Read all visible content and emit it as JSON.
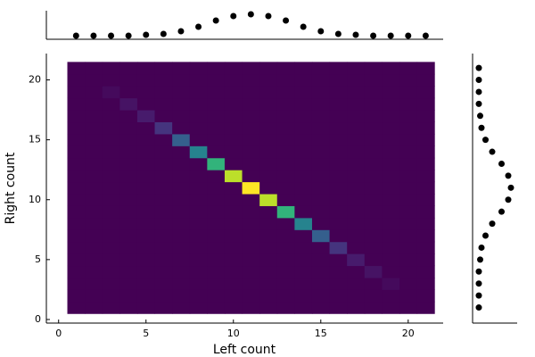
{
  "chart_data": [
    {
      "type": "heatmap",
      "x_label": "Left count",
      "y_label": "Right count",
      "x": [
        1,
        2,
        3,
        4,
        5,
        6,
        7,
        8,
        9,
        10,
        11,
        12,
        13,
        14,
        15,
        16,
        17,
        18,
        19,
        20,
        21
      ],
      "y": [
        1,
        2,
        3,
        4,
        5,
        6,
        7,
        8,
        9,
        10,
        11,
        12,
        13,
        14,
        15,
        16,
        17,
        18,
        19,
        20,
        21
      ],
      "z": [
        [
          0,
          0,
          0,
          0,
          0,
          0,
          0,
          0,
          0,
          0,
          0,
          0,
          0,
          0,
          0,
          0,
          0,
          0,
          0,
          0,
          0
        ],
        [
          0,
          0,
          0,
          0,
          0,
          0,
          0,
          0,
          0,
          0,
          0,
          0,
          0,
          0,
          0,
          0,
          0,
          0,
          0,
          0,
          0
        ],
        [
          0,
          0,
          0,
          0,
          0,
          0,
          0,
          0,
          0,
          0,
          0,
          0,
          0,
          0,
          0,
          0,
          0,
          0,
          1,
          0,
          0
        ],
        [
          0,
          0,
          0,
          0,
          0,
          0,
          0,
          0,
          0,
          0,
          0,
          0,
          0,
          0,
          0,
          0,
          0,
          2,
          0,
          0,
          0
        ],
        [
          0,
          0,
          0,
          0,
          0,
          0,
          0,
          0,
          0,
          0,
          0,
          0,
          0,
          0,
          0,
          0,
          3,
          0,
          0,
          0,
          0
        ],
        [
          0,
          0,
          0,
          0,
          0,
          0,
          0,
          0,
          0,
          0,
          0,
          0,
          0,
          0,
          0,
          6,
          0,
          0,
          0,
          0,
          0
        ],
        [
          0,
          0,
          0,
          0,
          0,
          0,
          0,
          0,
          0,
          0,
          0,
          0,
          0,
          0,
          12,
          0,
          0,
          0,
          0,
          0,
          0
        ],
        [
          0,
          0,
          0,
          0,
          0,
          0,
          0,
          0,
          0,
          0,
          0,
          0,
          0,
          18,
          0,
          0,
          0,
          0,
          0,
          0,
          0
        ],
        [
          0,
          0,
          0,
          0,
          0,
          0,
          0,
          0,
          0,
          0,
          0,
          0,
          26,
          0,
          0,
          0,
          0,
          0,
          0,
          0,
          0
        ],
        [
          0,
          0,
          0,
          0,
          0,
          0,
          0,
          0,
          0,
          0,
          0,
          36,
          0,
          0,
          0,
          0,
          0,
          0,
          0,
          0,
          0
        ],
        [
          0,
          0,
          0,
          0,
          0,
          0,
          0,
          0,
          0,
          0,
          40,
          0,
          0,
          0,
          0,
          0,
          0,
          0,
          0,
          0,
          0
        ],
        [
          0,
          0,
          0,
          0,
          0,
          0,
          0,
          0,
          0,
          36,
          0,
          0,
          0,
          0,
          0,
          0,
          0,
          0,
          0,
          0,
          0
        ],
        [
          0,
          0,
          0,
          0,
          0,
          0,
          0,
          0,
          26,
          0,
          0,
          0,
          0,
          0,
          0,
          0,
          0,
          0,
          0,
          0,
          0
        ],
        [
          0,
          0,
          0,
          0,
          0,
          0,
          0,
          18,
          0,
          0,
          0,
          0,
          0,
          0,
          0,
          0,
          0,
          0,
          0,
          0,
          0
        ],
        [
          0,
          0,
          0,
          0,
          0,
          0,
          12,
          0,
          0,
          0,
          0,
          0,
          0,
          0,
          0,
          0,
          0,
          0,
          0,
          0,
          0
        ],
        [
          0,
          0,
          0,
          0,
          0,
          6,
          0,
          0,
          0,
          0,
          0,
          0,
          0,
          0,
          0,
          0,
          0,
          0,
          0,
          0,
          0
        ],
        [
          0,
          0,
          0,
          0,
          3,
          0,
          0,
          0,
          0,
          0,
          0,
          0,
          0,
          0,
          0,
          0,
          0,
          0,
          0,
          0,
          0
        ],
        [
          0,
          0,
          0,
          2,
          0,
          0,
          0,
          0,
          0,
          0,
          0,
          0,
          0,
          0,
          0,
          0,
          0,
          0,
          0,
          0,
          0
        ],
        [
          0,
          0,
          1,
          0,
          0,
          0,
          0,
          0,
          0,
          0,
          0,
          0,
          0,
          0,
          0,
          0,
          0,
          0,
          0,
          0,
          0
        ],
        [
          0,
          0,
          0,
          0,
          0,
          0,
          0,
          0,
          0,
          0,
          0,
          0,
          0,
          0,
          0,
          0,
          0,
          0,
          0,
          0,
          0
        ],
        [
          0,
          0,
          0,
          0,
          0,
          0,
          0,
          0,
          0,
          0,
          0,
          0,
          0,
          0,
          0,
          0,
          0,
          0,
          0,
          0,
          0
        ]
      ],
      "zlim": [
        0,
        40
      ],
      "colorscale": "viridis",
      "xlim": [
        -0.7,
        22
      ],
      "ylim": [
        -0.3,
        22.2
      ],
      "xticks": [
        0,
        5,
        10,
        15,
        20
      ],
      "yticks": [
        0,
        5,
        10,
        15,
        20
      ]
    },
    {
      "type": "scatter",
      "position": "top",
      "x": [
        1,
        2,
        3,
        4,
        5,
        6,
        7,
        8,
        9,
        10,
        11,
        12,
        13,
        14,
        15,
        16,
        17,
        18,
        19,
        20,
        21
      ],
      "values": [
        4,
        4,
        4,
        4,
        5,
        6,
        9,
        14,
        21,
        26,
        28,
        26,
        21,
        14,
        9,
        6,
        5,
        4,
        4,
        4,
        4
      ],
      "ylim": [
        0,
        32
      ],
      "color": "#000000"
    },
    {
      "type": "scatter",
      "position": "right",
      "y": [
        1,
        2,
        3,
        4,
        5,
        6,
        7,
        8,
        9,
        10,
        11,
        12,
        13,
        14,
        15,
        16,
        17,
        18,
        19,
        20,
        21
      ],
      "values": [
        4,
        4,
        4,
        4,
        5,
        6,
        9,
        14,
        21,
        26,
        28,
        26,
        21,
        14,
        9,
        6,
        5,
        4,
        4,
        4,
        4
      ],
      "xlim": [
        0,
        32
      ],
      "color": "#000000"
    }
  ]
}
